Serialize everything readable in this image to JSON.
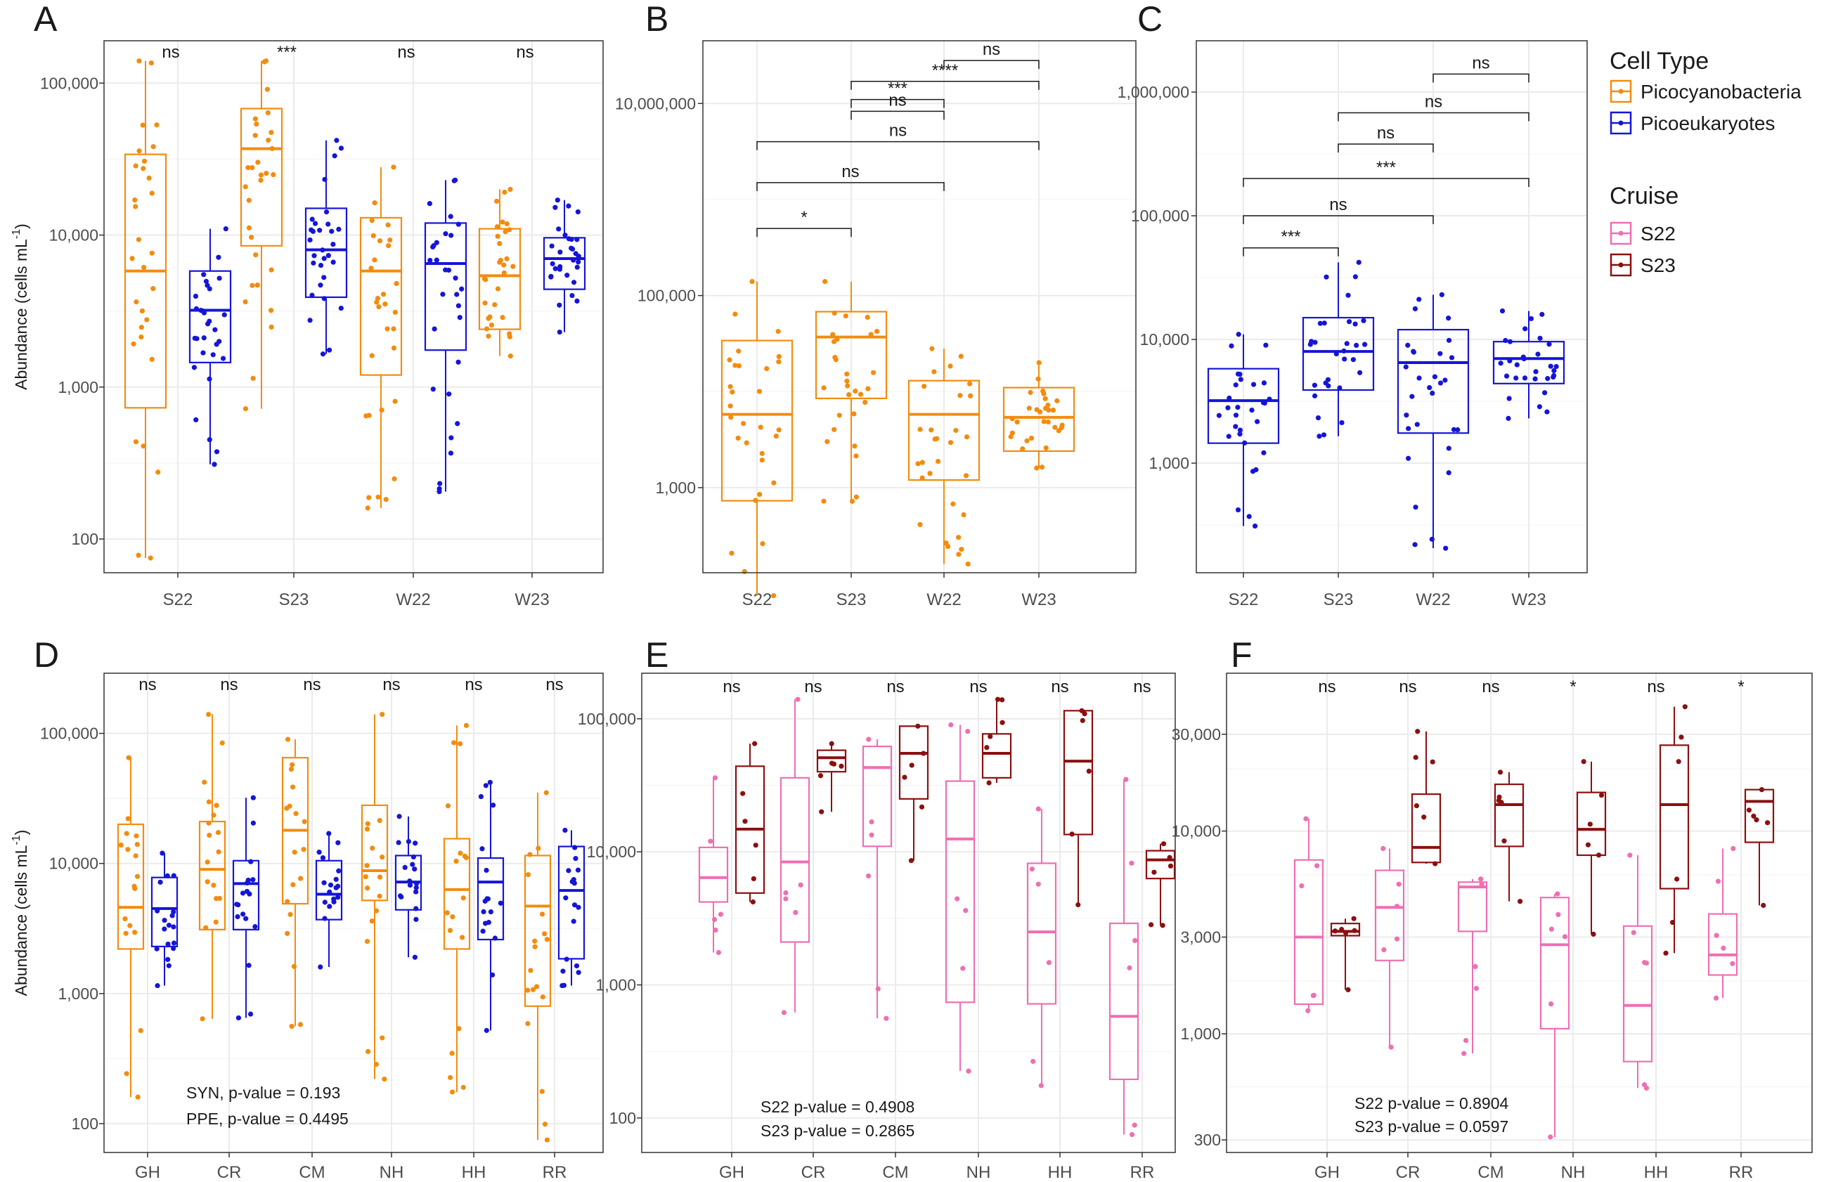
{
  "colors": {
    "picocyano": "#F28C0F",
    "picoeuk": "#1515D8",
    "s22": "#EE6FB2",
    "s23": "#8B1010",
    "grid": "#EBEBEB",
    "panel_border": "#333333",
    "bracket": "#1a1a1a"
  },
  "legend": {
    "celltype_title": "Cell Type",
    "celltype_items": [
      "Picocyanobacteria",
      "Picoeukaryotes"
    ],
    "cruise_title": "Cruise",
    "cruise_items": [
      "S22",
      "S23"
    ]
  },
  "labels": {
    "ylabel_main": "Abundance (cells mL",
    "ylabel_sup": "-1",
    "ylabel_close": ")"
  },
  "chart_data": [
    {
      "panel": "A",
      "type": "boxplot",
      "title": "",
      "ylabel": "Abundance (cells mL-1)",
      "yscale": "log",
      "ylim": [
        60,
        190000
      ],
      "yticks": [
        100,
        1000,
        10000,
        100000
      ],
      "ytick_labels": [
        "100",
        "1,000",
        "10,000",
        "100,000"
      ],
      "categories": [
        "S22",
        "S23",
        "W22",
        "W23"
      ],
      "series": [
        {
          "name": "Picocyanobacteria",
          "color_key": "picocyano",
          "boxes": [
            {
              "q1": 730,
              "median": 5800,
              "q3": 34000,
              "lo": 75,
              "hi": 140000
            },
            {
              "q1": 8500,
              "median": 37000,
              "q3": 68000,
              "lo": 720,
              "hi": 140000
            },
            {
              "q1": 1200,
              "median": 5800,
              "q3": 13000,
              "lo": 160,
              "hi": 28000
            },
            {
              "q1": 2400,
              "median": 5400,
              "q3": 11000,
              "lo": 1600,
              "hi": 20000
            }
          ]
        },
        {
          "name": "Picoeukaryotes",
          "color_key": "picoeuk",
          "boxes": [
            {
              "q1": 1450,
              "median": 3200,
              "q3": 5800,
              "lo": 310,
              "hi": 11000
            },
            {
              "q1": 3900,
              "median": 8000,
              "q3": 15000,
              "lo": 1650,
              "hi": 42000
            },
            {
              "q1": 1750,
              "median": 6500,
              "q3": 12000,
              "lo": 205,
              "hi": 23000
            },
            {
              "q1": 4400,
              "median": 7000,
              "q3": 9600,
              "lo": 2300,
              "hi": 17000
            }
          ]
        }
      ],
      "annotations": [
        "ns",
        "***",
        "ns",
        "ns"
      ]
    },
    {
      "panel": "B",
      "type": "boxplot",
      "title": "",
      "ylabel": "",
      "yscale": "log",
      "ylim": [
        130,
        45000000
      ],
      "yticks": [
        1000,
        100000,
        10000000
      ],
      "ytick_labels": [
        "1,000",
        "100,000",
        "10,000,000"
      ],
      "categories": [
        "S22",
        "S23",
        "W22",
        "W23"
      ],
      "series": [
        {
          "name": "Picocyanobacteria",
          "color_key": "picocyano",
          "boxes": [
            {
              "q1": 730,
              "median": 5800,
              "q3": 34000,
              "lo": 75,
              "hi": 140000
            },
            {
              "q1": 8500,
              "median": 37000,
              "q3": 68000,
              "lo": 720,
              "hi": 140000
            },
            {
              "q1": 1200,
              "median": 5800,
              "q3": 13000,
              "lo": 160,
              "hi": 28000
            },
            {
              "q1": 2400,
              "median": 5400,
              "q3": 11000,
              "lo": 1600,
              "hi": 20000
            }
          ]
        }
      ],
      "comparisons": [
        {
          "from": "S22",
          "to": "S23",
          "y": 500000,
          "label": "*"
        },
        {
          "from": "S22",
          "to": "W22",
          "y": 1500000,
          "label": "ns"
        },
        {
          "from": "S22",
          "to": "W23",
          "y": 4000000,
          "label": "ns"
        },
        {
          "from": "S23",
          "to": "W22",
          "y": 8300000,
          "label": "ns"
        },
        {
          "from": "S23",
          "to": "W22",
          "y": 11000000,
          "label": "***"
        },
        {
          "from": "S23",
          "to": "W23",
          "y": 17000000,
          "label": "****"
        },
        {
          "from": "W22",
          "to": "W23",
          "y": 28000000,
          "label": "ns"
        }
      ]
    },
    {
      "panel": "C",
      "type": "boxplot",
      "title": "",
      "ylabel": "",
      "yscale": "log",
      "ylim": [
        130,
        2600000
      ],
      "yticks": [
        1000,
        10000,
        100000,
        1000000
      ],
      "ytick_labels": [
        "1,000",
        "10,000",
        "100,000",
        "1,000,000"
      ],
      "categories": [
        "S22",
        "S23",
        "W22",
        "W23"
      ],
      "series": [
        {
          "name": "Picoeukaryotes",
          "color_key": "picoeuk",
          "boxes": [
            {
              "q1": 1450,
              "median": 3200,
              "q3": 5800,
              "lo": 310,
              "hi": 11000
            },
            {
              "q1": 3900,
              "median": 8000,
              "q3": 15000,
              "lo": 1650,
              "hi": 42000
            },
            {
              "q1": 1750,
              "median": 6500,
              "q3": 12000,
              "lo": 205,
              "hi": 23000
            },
            {
              "q1": 4400,
              "median": 7000,
              "q3": 9600,
              "lo": 2300,
              "hi": 17000
            }
          ]
        }
      ],
      "comparisons": [
        {
          "from": "S22",
          "to": "S23",
          "y": 55000,
          "label": "***"
        },
        {
          "from": "S22",
          "to": "W22",
          "y": 100000,
          "label": "ns"
        },
        {
          "from": "S22",
          "to": "W23",
          "y": 200000,
          "label": "***"
        },
        {
          "from": "S23",
          "to": "W22",
          "y": 380000,
          "label": "ns"
        },
        {
          "from": "S23",
          "to": "W23",
          "y": 680000,
          "label": "ns"
        },
        {
          "from": "W22",
          "to": "W23",
          "y": 1400000,
          "label": "ns"
        }
      ]
    },
    {
      "panel": "D",
      "type": "boxplot",
      "title": "",
      "ylabel": "Abundance (cells mL-1)",
      "yscale": "log",
      "ylim": [
        60,
        290000
      ],
      "yticks": [
        100,
        1000,
        10000,
        100000
      ],
      "ytick_labels": [
        "100",
        "1,000",
        "10,000",
        "100,000"
      ],
      "categories": [
        "GH",
        "CR",
        "CM",
        "NH",
        "HH",
        "RR"
      ],
      "series": [
        {
          "name": "Picocyanobacteria",
          "color_key": "picocyano",
          "boxes": [
            {
              "q1": 2200,
              "median": 4600,
              "q3": 20000,
              "lo": 160,
              "hi": 65000
            },
            {
              "q1": 3100,
              "median": 9000,
              "q3": 21000,
              "lo": 640,
              "hi": 140000
            },
            {
              "q1": 4900,
              "median": 18000,
              "q3": 65000,
              "lo": 560,
              "hi": 90000
            },
            {
              "q1": 5200,
              "median": 8800,
              "q3": 28000,
              "lo": 220,
              "hi": 140000
            },
            {
              "q1": 2200,
              "median": 6300,
              "q3": 15500,
              "lo": 175,
              "hi": 115000
            },
            {
              "q1": 800,
              "median": 4700,
              "q3": 11500,
              "lo": 75,
              "hi": 35000
            }
          ]
        },
        {
          "name": "Picoeukaryotes",
          "color_key": "picoeuk",
          "boxes": [
            {
              "q1": 2300,
              "median": 4500,
              "q3": 7800,
              "lo": 1150,
              "hi": 12000
            },
            {
              "q1": 3100,
              "median": 7000,
              "q3": 10500,
              "lo": 650,
              "hi": 32000
            },
            {
              "q1": 3700,
              "median": 5800,
              "q3": 10500,
              "lo": 1600,
              "hi": 17000
            },
            {
              "q1": 4400,
              "median": 7200,
              "q3": 11500,
              "lo": 1900,
              "hi": 23000
            },
            {
              "q1": 2600,
              "median": 7200,
              "q3": 11000,
              "lo": 520,
              "hi": 42000
            },
            {
              "q1": 1850,
              "median": 6200,
              "q3": 13500,
              "lo": 1150,
              "hi": 18000
            }
          ]
        }
      ],
      "annotations": [
        "ns",
        "ns",
        "ns",
        "ns",
        "ns",
        "ns"
      ],
      "text": [
        "SYN, p-value = 0.193",
        "PPE, p-value = 0.4495"
      ]
    },
    {
      "panel": "E",
      "type": "boxplot",
      "title": "",
      "ylabel": "",
      "yscale": "log",
      "ylim": [
        55,
        220000
      ],
      "yticks": [
        100,
        1000,
        10000,
        100000
      ],
      "ytick_labels": [
        "100",
        "1,000",
        "10,000",
        "100,000"
      ],
      "categories": [
        "GH",
        "CR",
        "CM",
        "NH",
        "HH",
        "RR"
      ],
      "series": [
        {
          "name": "S22",
          "color_key": "s22",
          "boxes": [
            {
              "q1": 4200,
              "median": 6400,
              "q3": 10800,
              "lo": 1750,
              "hi": 36000
            },
            {
              "q1": 2100,
              "median": 8400,
              "q3": 36000,
              "lo": 620,
              "hi": 140000
            },
            {
              "q1": 11000,
              "median": 43000,
              "q3": 62000,
              "lo": 560,
              "hi": 70000
            },
            {
              "q1": 740,
              "median": 12500,
              "q3": 34000,
              "lo": 225,
              "hi": 90000
            },
            {
              "q1": 720,
              "median": 2500,
              "q3": 8200,
              "lo": 175,
              "hi": 21000
            },
            {
              "q1": 195,
              "median": 580,
              "q3": 2900,
              "lo": 75,
              "hi": 35000
            }
          ]
        },
        {
          "name": "S23",
          "color_key": "s23",
          "boxes": [
            {
              "q1": 4900,
              "median": 14800,
              "q3": 44000,
              "lo": 4200,
              "hi": 65000
            },
            {
              "q1": 40000,
              "median": 51000,
              "q3": 58000,
              "lo": 20000,
              "hi": 65000
            },
            {
              "q1": 25000,
              "median": 55000,
              "q3": 88000,
              "lo": 8600,
              "hi": 88000
            },
            {
              "q1": 36000,
              "median": 55000,
              "q3": 77000,
              "lo": 33000,
              "hi": 140000
            },
            {
              "q1": 13500,
              "median": 48000,
              "q3": 115000,
              "lo": 4000,
              "hi": 115000
            },
            {
              "q1": 6300,
              "median": 8700,
              "q3": 10200,
              "lo": 2800,
              "hi": 11500
            }
          ]
        }
      ],
      "annotations": [
        "ns",
        "ns",
        "ns",
        "ns",
        "ns",
        "ns"
      ],
      "text": [
        "S22 p-value = 0.4908",
        "S23 p-value = 0.2865"
      ]
    },
    {
      "panel": "F",
      "type": "boxplot",
      "title": "",
      "ylabel": "",
      "yscale": "log",
      "ylim": [
        260,
        60000
      ],
      "yticks": [
        300,
        1000,
        3000,
        10000,
        30000
      ],
      "ytick_labels": [
        "300",
        "1,000",
        "3,000",
        "10,000",
        "30,000"
      ],
      "categories": [
        "GH",
        "CR",
        "CM",
        "NH",
        "HH",
        "RR"
      ],
      "series": [
        {
          "name": "S22",
          "color_key": "s22",
          "boxes": [
            {
              "q1": 1400,
              "median": 3000,
              "q3": 7200,
              "lo": 1300,
              "hi": 11500
            },
            {
              "q1": 2300,
              "median": 4200,
              "q3": 6400,
              "lo": 860,
              "hi": 8200
            },
            {
              "q1": 3200,
              "median": 5300,
              "q3": 5600,
              "lo": 800,
              "hi": 5800
            },
            {
              "q1": 1060,
              "median": 2750,
              "q3": 4700,
              "lo": 310,
              "hi": 4900
            },
            {
              "q1": 730,
              "median": 1380,
              "q3": 3400,
              "lo": 540,
              "hi": 7600
            },
            {
              "q1": 1950,
              "median": 2450,
              "q3": 3900,
              "lo": 1500,
              "hi": 8200
            }
          ]
        },
        {
          "name": "S23",
          "color_key": "s23",
          "boxes": [
            {
              "q1": 3050,
              "median": 3200,
              "q3": 3500,
              "lo": 1650,
              "hi": 3700
            },
            {
              "q1": 7000,
              "median": 8300,
              "q3": 15200,
              "lo": 6900,
              "hi": 31000
            },
            {
              "q1": 8400,
              "median": 13500,
              "q3": 17000,
              "lo": 4500,
              "hi": 19500
            },
            {
              "q1": 7600,
              "median": 10200,
              "q3": 15500,
              "lo": 3100,
              "hi": 22000
            },
            {
              "q1": 5200,
              "median": 13500,
              "q3": 26500,
              "lo": 2500,
              "hi": 41000
            },
            {
              "q1": 8800,
              "median": 14000,
              "q3": 16000,
              "lo": 4300,
              "hi": 16000
            }
          ]
        }
      ],
      "annotations": [
        "ns",
        "ns",
        "ns",
        "*",
        "ns",
        "*"
      ],
      "text": [
        "S22 p-value = 0.8904",
        "S23 p-value = 0.0597"
      ]
    }
  ]
}
